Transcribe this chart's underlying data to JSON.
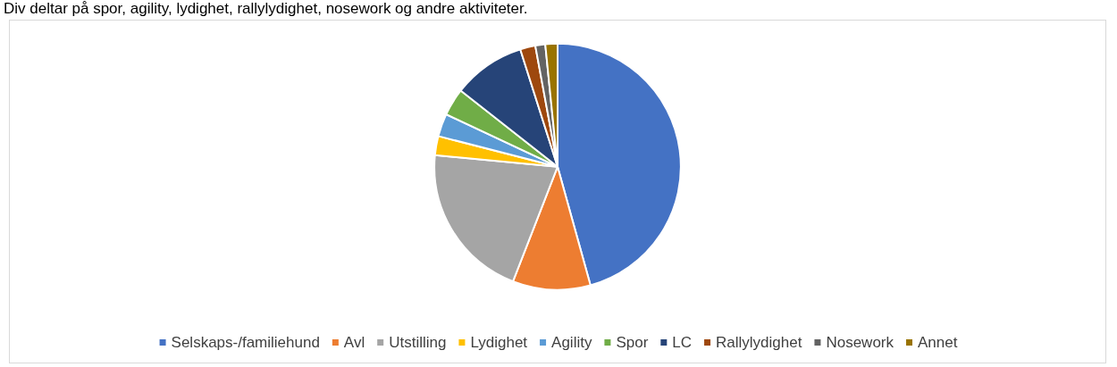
{
  "chart_data": {
    "type": "pie",
    "title": "Div deltar på spor, agility, lydighet, rallylydighet, nosework og andre aktiviteter.",
    "categories": [
      "Selskaps-/familiehund",
      "Avl",
      "Utstilling",
      "Lydighet",
      "Agility",
      "Spor",
      "LC",
      "Rallylydighet",
      "Nosework",
      "Annet"
    ],
    "values": [
      45.7,
      10.2,
      20.6,
      2.5,
      3.0,
      3.6,
      9.5,
      2.0,
      1.3,
      1.6
    ],
    "colors": [
      "#4472c4",
      "#ed7d31",
      "#a5a5a5",
      "#ffc000",
      "#5b9bd5",
      "#70ad47",
      "#264478",
      "#9e480e",
      "#636363",
      "#997300"
    ],
    "legend": "bottom"
  }
}
